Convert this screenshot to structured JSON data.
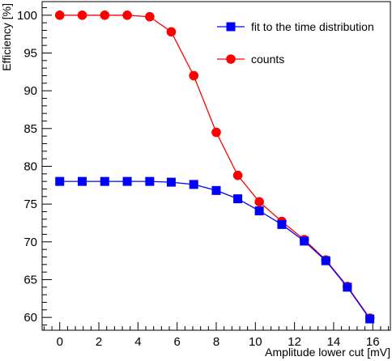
{
  "chart_data": {
    "type": "line",
    "title": "",
    "xlabel": "Amplitude lower cut [mV]",
    "ylabel": "Efficiency [%]",
    "xlim": [
      -0.9,
      16.9
    ],
    "ylim": [
      58.3,
      101.8
    ],
    "x_ticks": [
      0,
      2,
      4,
      6,
      8,
      10,
      12,
      14,
      16
    ],
    "y_ticks": [
      60,
      65,
      70,
      75,
      80,
      85,
      90,
      95,
      100
    ],
    "grid": false,
    "legend_position": "top-right",
    "series": [
      {
        "name": "fit to the time distribution",
        "color": "#0000ff",
        "marker": "square",
        "x": [
          0,
          1.15,
          2.3,
          3.45,
          4.6,
          5.7,
          6.85,
          8.0,
          9.1,
          10.2,
          11.35,
          12.5,
          13.6,
          14.7,
          15.85
        ],
        "y": [
          78.0,
          78.0,
          78.0,
          78.0,
          78.0,
          77.9,
          77.6,
          76.8,
          75.7,
          74.1,
          72.3,
          70.1,
          67.5,
          64.0,
          59.8
        ]
      },
      {
        "name": "counts",
        "color": "#ff0000",
        "marker": "circle",
        "x": [
          0,
          1.15,
          2.3,
          3.45,
          4.6,
          5.7,
          6.85,
          8.0,
          9.1,
          10.2,
          11.35,
          12.5,
          13.6,
          14.7,
          15.85
        ],
        "y": [
          100.0,
          100.0,
          100.0,
          100.0,
          99.8,
          97.8,
          92.0,
          84.5,
          78.8,
          75.3,
          72.7,
          70.3,
          67.6,
          64.1,
          59.9
        ]
      }
    ]
  }
}
